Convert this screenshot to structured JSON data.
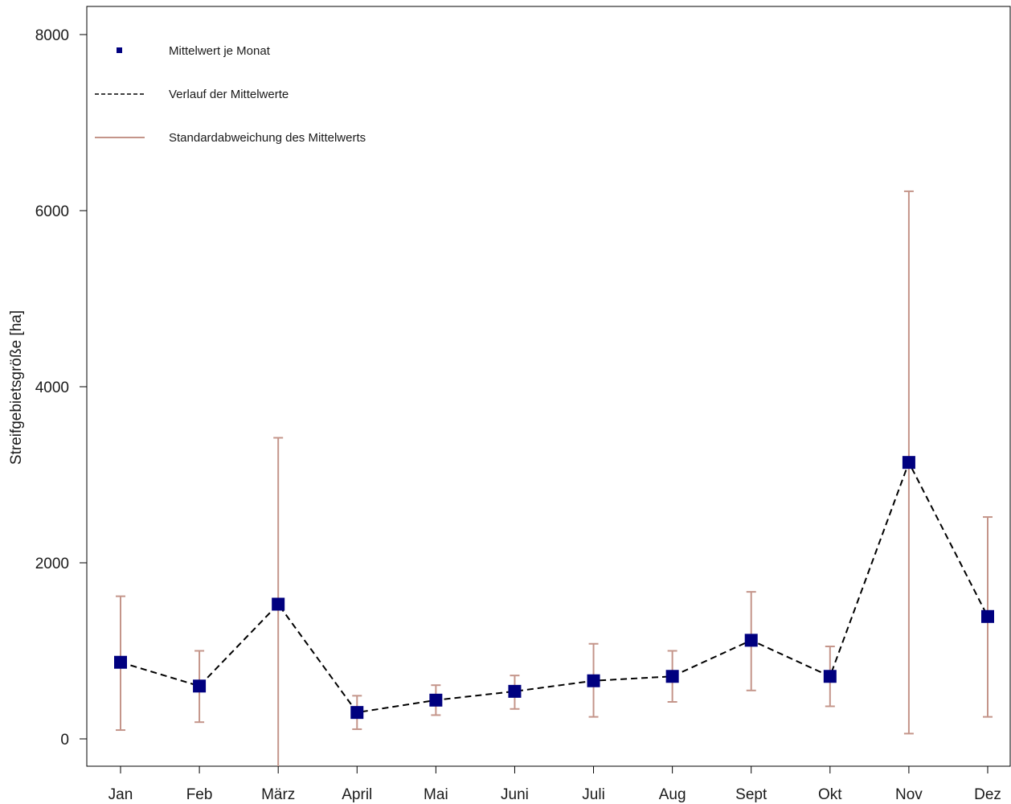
{
  "chart_data": {
    "type": "line",
    "categories": [
      "Jan",
      "Feb",
      "März",
      "April",
      "Mai",
      "Juni",
      "Juli",
      "Aug",
      "Sept",
      "Okt",
      "Nov",
      "Dez"
    ],
    "series": [
      {
        "name": "Mittelwert je Monat",
        "values": [
          870,
          600,
          1530,
          300,
          440,
          540,
          660,
          710,
          1120,
          710,
          3140,
          1390
        ],
        "error_low": [
          100,
          190,
          -500,
          110,
          270,
          340,
          250,
          420,
          550,
          370,
          60,
          250
        ],
        "error_high": [
          1620,
          1000,
          3420,
          490,
          610,
          720,
          1080,
          1000,
          1670,
          1050,
          6220,
          2520
        ]
      }
    ],
    "legend": [
      {
        "label": "Mittelwert je Monat",
        "kind": "marker"
      },
      {
        "label": "Verlauf der Mittelwerte",
        "kind": "dashed-line"
      },
      {
        "label": "Standardabweichung des Mittelwerts",
        "kind": "solid-line"
      }
    ],
    "ylabel": "Streifgebietsgröße [ha]",
    "xlabel": "",
    "title": "",
    "y_ticks": [
      0,
      2000,
      4000,
      6000,
      8000
    ],
    "ylim": [
      -300,
      8300
    ],
    "legend_position": "top-left",
    "grid": false,
    "colors": {
      "marker": "#00007f",
      "line": "#000000",
      "error": "#c4958a",
      "axis": "#000000"
    }
  }
}
